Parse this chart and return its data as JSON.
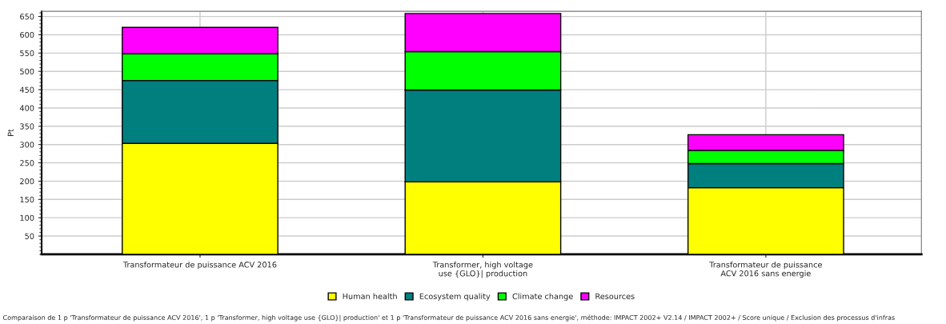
{
  "chart_data": {
    "type": "bar",
    "stacked": true,
    "ylabel": "Pt",
    "categories": [
      "Transformateur de puissance ACV 2016",
      "Transformer, high voltage\nuse {GLO}| production",
      "Transformateur de puissance\nACV 2016 sans energie"
    ],
    "series": [
      {
        "name": "Human health",
        "color": "#ffff00",
        "values": [
          303,
          198,
          182
        ]
      },
      {
        "name": "Ecosystem quality",
        "color": "#007f7f",
        "values": [
          172,
          251,
          66
        ]
      },
      {
        "name": "Climate change",
        "color": "#00ff00",
        "values": [
          73,
          105,
          36
        ]
      },
      {
        "name": "Resources",
        "color": "#ff00ff",
        "values": [
          72,
          104,
          43
        ]
      }
    ],
    "ylim": [
      0,
      664
    ],
    "yticks": [
      50,
      100,
      150,
      200,
      250,
      300,
      350,
      400,
      450,
      500,
      550,
      600,
      650
    ],
    "grid": true,
    "legend": "bottom",
    "annotations": [
      "Comparaison de 1 p 'Transformateur de puissance ACV 2016', 1 p 'Transformer, high voltage use {GLO}| production' et 1 p 'Transformateur de puissance ACV 2016 sans energie', méthode: IMPACT 2002+ V2.14 / IMPACT 2002+ / Score unique / Exclusion des processus d'infras"
    ]
  }
}
